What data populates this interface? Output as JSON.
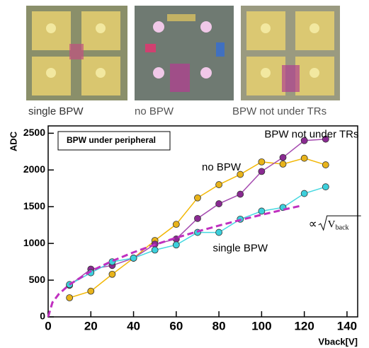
{
  "captions": [
    "single BPW",
    "no BPW",
    "BPW not under TRs"
  ],
  "chart_data": {
    "type": "line",
    "box_label": "BPW under peripheral",
    "ylabel": "ADC",
    "xlabel": "Vback[V]",
    "xlim": [
      0,
      145
    ],
    "ylim": [
      0,
      2600
    ],
    "xticks": [
      0,
      20,
      40,
      60,
      80,
      100,
      120,
      140
    ],
    "yticks": [
      0,
      500,
      1000,
      1500,
      2000,
      2500
    ],
    "series": [
      {
        "name": "no BPW",
        "color": "#f2b705",
        "marker_color": "#e8b31a",
        "x": [
          10,
          20,
          30,
          40,
          50,
          60,
          70,
          80,
          90,
          100,
          110,
          120,
          130
        ],
        "values": [
          260,
          350,
          580,
          800,
          1040,
          1260,
          1620,
          1800,
          1940,
          2110,
          2080,
          2160,
          2070
        ]
      },
      {
        "name": "BPW not under TRs",
        "color": "#a54bb0",
        "marker_color": "#8a2a92",
        "x": [
          10,
          20,
          30,
          40,
          50,
          60,
          70,
          80,
          90,
          100,
          110,
          120,
          130
        ],
        "values": [
          430,
          650,
          700,
          800,
          990,
          1060,
          1340,
          1540,
          1670,
          1980,
          2170,
          2400,
          2420
        ]
      },
      {
        "name": "single BPW",
        "color": "#45d8e0",
        "marker_color": "#3cd0dc",
        "x": [
          10,
          20,
          30,
          40,
          50,
          60,
          70,
          80,
          90,
          100,
          110,
          120,
          130
        ],
        "values": [
          440,
          600,
          750,
          800,
          910,
          980,
          1150,
          1150,
          1330,
          1440,
          1490,
          1680,
          1770
        ]
      },
      {
        "color": "#c030c0",
        "dashed": true,
        "x": [
          0,
          2,
          5,
          10,
          20,
          30,
          40,
          50,
          60,
          70,
          80,
          90,
          100,
          110,
          118
        ],
        "values": [
          0,
          197,
          311,
          440,
          622,
          761,
          879,
          983,
          1077,
          1163,
          1243,
          1319,
          1390,
          1458,
          1510
        ]
      }
    ],
    "fit_label": {
      "symbol": "∝",
      "variable": "V",
      "subscript": "back"
    }
  }
}
